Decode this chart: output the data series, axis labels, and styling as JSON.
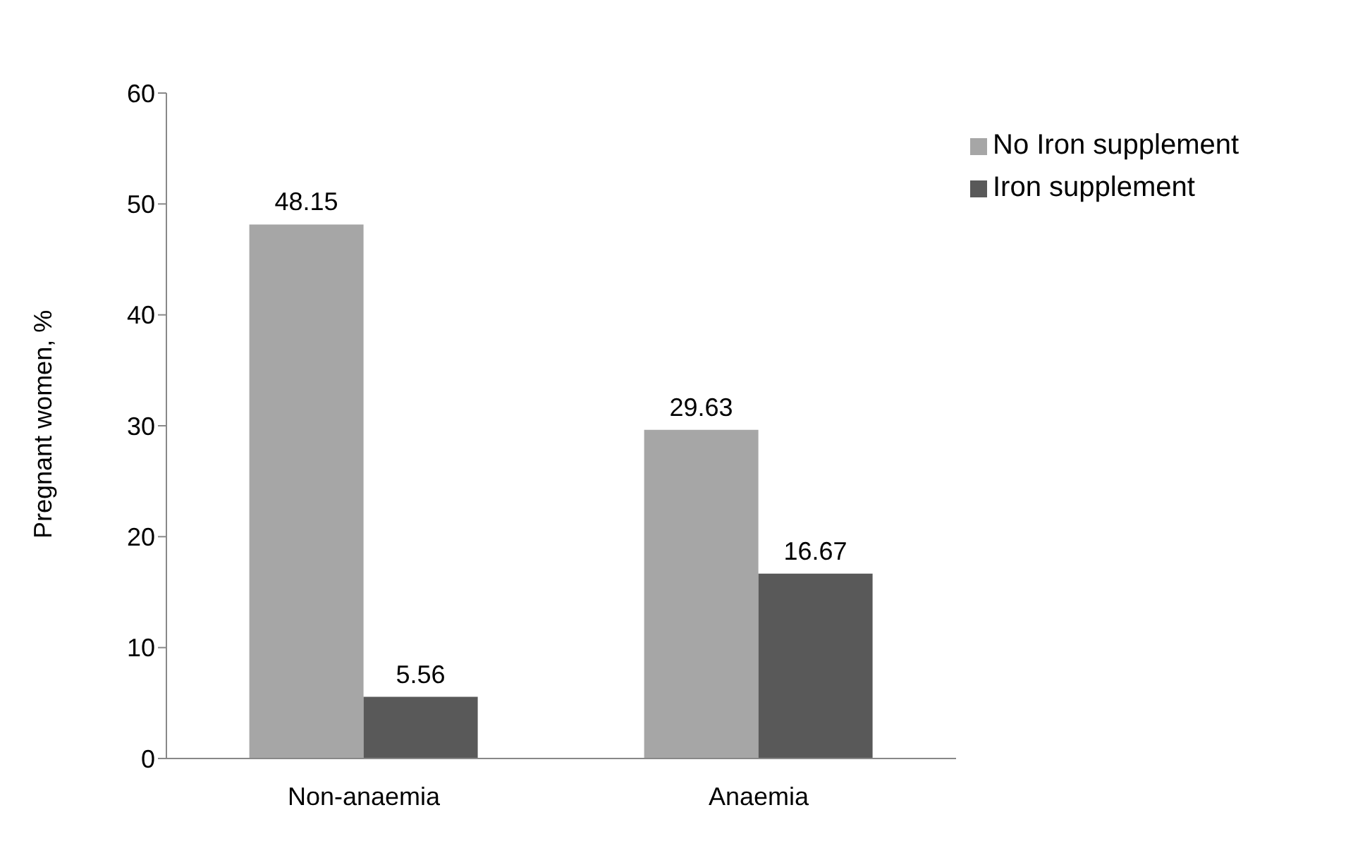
{
  "chart_data": {
    "type": "bar",
    "categories": [
      "Non-anaemia",
      "Anaemia"
    ],
    "series": [
      {
        "name": "No Iron supplement",
        "color": "#a6a6a6",
        "values": [
          48.15,
          29.63
        ]
      },
      {
        "name": "Iron supplement",
        "color": "#595959",
        "values": [
          5.56,
          16.67
        ]
      }
    ],
    "ylabel": "Pregnant women, %",
    "ylim": [
      0,
      60
    ],
    "yticks": [
      0,
      10,
      20,
      30,
      40,
      50,
      60
    ],
    "data_labels": true,
    "legend": "top right",
    "grid": false
  }
}
